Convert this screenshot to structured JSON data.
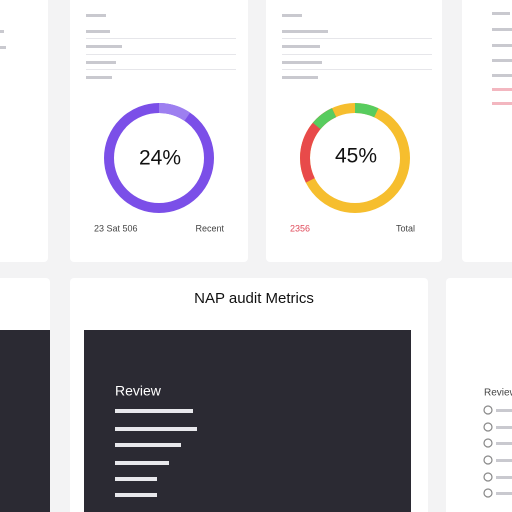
{
  "cards": [
    {
      "percent": "24%",
      "footer_left": "23 Sat 506",
      "footer_right": "Recent"
    },
    {
      "percent": "45%",
      "footer_left": "2356",
      "footer_right": "Total"
    }
  ],
  "panel": {
    "title": "NAP audit Metrics",
    "heading": "Review"
  },
  "side_panel": {
    "heading": "Review"
  }
}
